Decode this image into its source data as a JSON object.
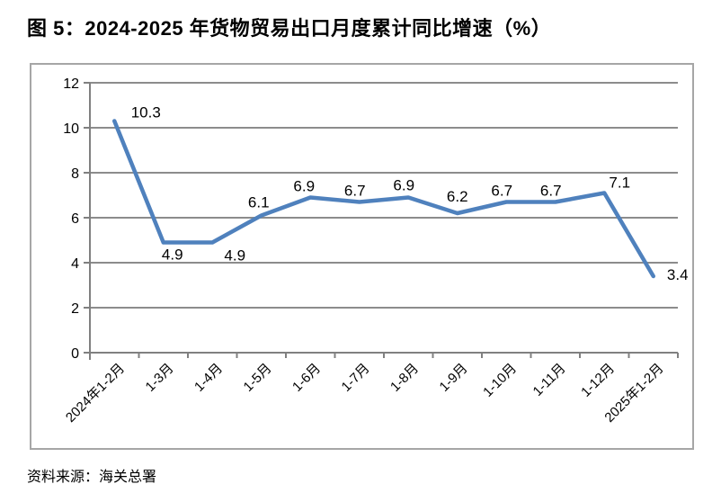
{
  "figure": {
    "title": "图 5：2024-2025 年货物贸易出口月度累计同比增速（%）",
    "source": "资料来源：海关总署"
  },
  "chart_data": {
    "type": "line",
    "title": "图 5：2024-2025 年货物贸易出口月度累计同比增速（%）",
    "categories": [
      "2024年1-2月",
      "1-3月",
      "1-4月",
      "1-5月",
      "1-6月",
      "1-7月",
      "1-8月",
      "1-9月",
      "1-10月",
      "1-11月",
      "1-12月",
      "2025年1-2月"
    ],
    "values": [
      10.3,
      4.9,
      4.9,
      6.1,
      6.9,
      6.7,
      6.9,
      6.2,
      6.7,
      6.7,
      7.1,
      3.4
    ],
    "xlabel": "",
    "ylabel": "",
    "ylim": [
      0,
      12
    ],
    "ytick_step": 2,
    "yticks": [
      0,
      2,
      4,
      6,
      8,
      10,
      12
    ],
    "grid": true,
    "legend": "none",
    "data_labels": true,
    "x_label_rotation_deg": 45,
    "colors": {
      "line": "#4f81bd",
      "grid": "#8c8c8c",
      "axis": "#808080",
      "border": "#a6a6a6",
      "text": "#000000"
    }
  }
}
